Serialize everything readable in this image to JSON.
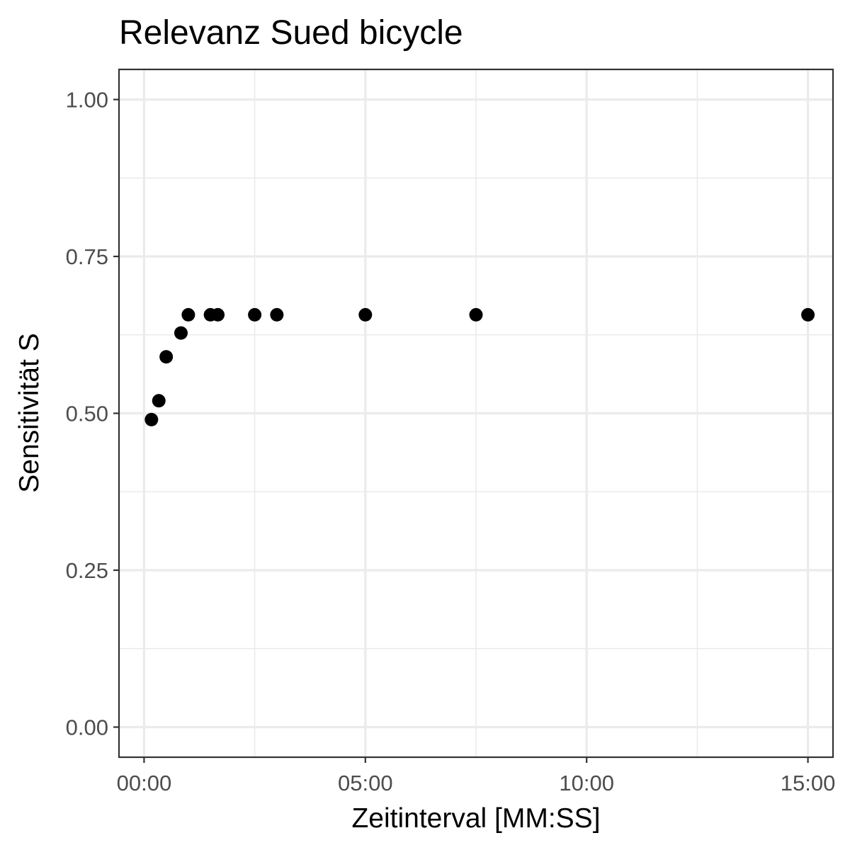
{
  "chart_data": {
    "type": "scatter",
    "title": "Relevanz Sued bicycle",
    "xlabel": "Zeitinterval [MM:SS]",
    "ylabel": "Sensitivität S",
    "x_unit": "MM:SS",
    "xlim": [
      "-00:34",
      "15:34"
    ],
    "ylim": [
      -0.048,
      1.048
    ],
    "x_ticks": [
      "00:00",
      "05:00",
      "10:00",
      "15:00"
    ],
    "y_ticks": [
      "0.00",
      "0.25",
      "0.50",
      "0.75",
      "1.00"
    ],
    "x_minor_ticks": [
      "02:30",
      "07:30",
      "12:30"
    ],
    "y_minor_ticks": [
      0.125,
      0.375,
      0.625,
      0.875
    ],
    "grid": true,
    "legend": "none",
    "point_color": "#000000",
    "points": [
      {
        "x": "00:10",
        "y": 0.49
      },
      {
        "x": "00:20",
        "y": 0.52
      },
      {
        "x": "00:30",
        "y": 0.59
      },
      {
        "x": "00:50",
        "y": 0.628
      },
      {
        "x": "01:00",
        "y": 0.657
      },
      {
        "x": "01:30",
        "y": 0.657
      },
      {
        "x": "01:40",
        "y": 0.657
      },
      {
        "x": "02:30",
        "y": 0.657
      },
      {
        "x": "03:00",
        "y": 0.657
      },
      {
        "x": "05:00",
        "y": 0.657
      },
      {
        "x": "07:30",
        "y": 0.657
      },
      {
        "x": "15:00",
        "y": 0.657
      }
    ]
  }
}
